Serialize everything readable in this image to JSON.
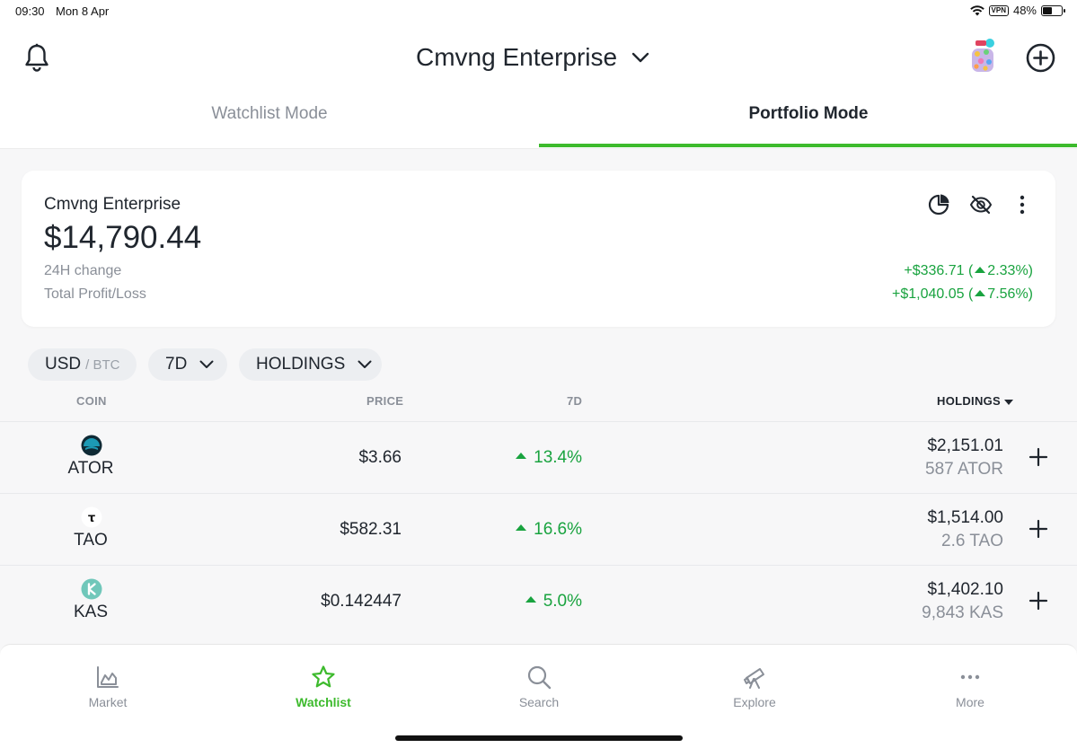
{
  "status_bar": {
    "time": "09:30",
    "date": "Mon 8 Apr",
    "vpn": "VPN",
    "battery": "48%",
    "battery_level": 0.48
  },
  "header": {
    "title": "Cmvng Enterprise"
  },
  "tabs": [
    {
      "label": "Watchlist Mode",
      "active": false
    },
    {
      "label": "Portfolio Mode",
      "active": true
    }
  ],
  "summary": {
    "name": "Cmvng Enterprise",
    "value": "$14,790.44",
    "change_label": "24H change",
    "change_value": "+$336.71 (",
    "change_pct": "2.33%)",
    "pl_label": "Total Profit/Loss",
    "pl_value": "+$1,040.05 (",
    "pl_pct": "7.56%)"
  },
  "filters": {
    "currency": "USD",
    "currency_alt": "/ BTC",
    "period": "7D",
    "sort": "HOLDINGS"
  },
  "table": {
    "headers": {
      "coin": "COIN",
      "price": "PRICE",
      "change": "7D",
      "holdings": "HOLDINGS"
    },
    "rows": [
      {
        "symbol": "ATOR",
        "price": "$3.66",
        "change": "13.4%",
        "holdings_value": "$2,151.01",
        "holdings_amount": "587 ATOR",
        "icon": "ator-logo",
        "icon_color": "#1c9ab5"
      },
      {
        "symbol": "TAO",
        "price": "$582.31",
        "change": "16.6%",
        "holdings_value": "$1,514.00",
        "holdings_amount": "2.6 TAO",
        "icon": "tao-logo",
        "icon_glyph": "τ",
        "icon_color": "#ffffff"
      },
      {
        "symbol": "KAS",
        "price": "$0.142447",
        "change": "5.0%",
        "holdings_value": "$1,402.10",
        "holdings_amount": "9,843 KAS",
        "icon": "kaspa-logo",
        "icon_color": "#70c7ba"
      }
    ]
  },
  "bottom_nav": [
    {
      "label": "Market",
      "icon": "chart-icon",
      "active": false
    },
    {
      "label": "Watchlist",
      "icon": "star-icon",
      "active": true
    },
    {
      "label": "Search",
      "icon": "search-icon",
      "active": false
    },
    {
      "label": "Explore",
      "icon": "telescope-icon",
      "active": false
    },
    {
      "label": "More",
      "icon": "more-icon",
      "active": false
    }
  ],
  "colors": {
    "accent": "#3dba2d",
    "positive": "#19a33f",
    "muted": "#8a8f98"
  }
}
